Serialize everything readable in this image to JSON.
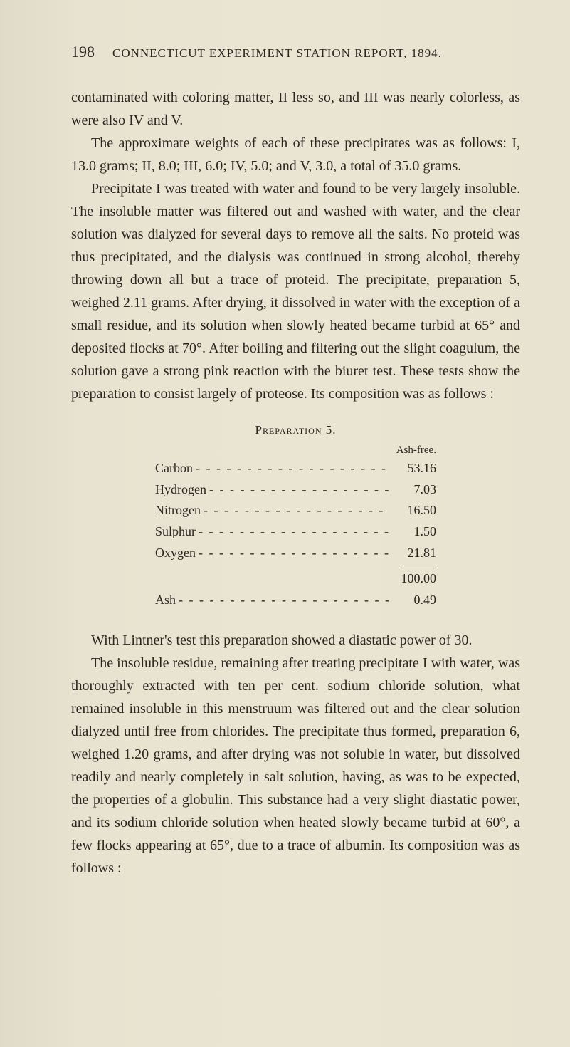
{
  "header": {
    "page_number": "198",
    "title": "CONNECTICUT EXPERIMENT STATION REPORT, 1894."
  },
  "paragraphs": {
    "p1": "contaminated with coloring matter, II less so, and III was nearly colorless, as were also IV and V.",
    "p2": "The approximate weights of each of these precipitates was as follows: I, 13.0 grams; II, 8.0; III, 6.0; IV, 5.0; and V, 3.0, a total of 35.0 grams.",
    "p3": "Precipitate I was treated with water and found to be very largely insoluble. The insoluble matter was filtered out and washed with water, and the clear solution was dialyzed for several days to remove all the salts. No proteid was thus precipitated, and the dialysis was continued in strong alcohol, thereby throwing down all but a trace of proteid. The precipitate, preparation 5, weighed 2.11 grams. After drying, it dissolved in water with the exception of a small residue, and its solution when slowly heated became turbid at 65° and deposited flocks at 70°. After boiling and filtering out the slight coagulum, the solution gave a strong pink reaction with the biuret test. These tests show the preparation to consist largely of proteose. Its composition was as follows :",
    "p4": "With Lintner's test this preparation showed a diastatic power of 30.",
    "p5": "The insoluble residue, remaining after treating precipitate I with water, was thoroughly extracted with ten per cent. sodium chloride solution, what remained insoluble in this menstruum was filtered out and the clear solution dialyzed until free from chlorides. The precipitate thus formed, preparation 6, weighed 1.20 grams, and after drying was not soluble in water, but dissolved readily and nearly completely in salt solution, having, as was to be expected, the properties of a globulin. This substance had a very slight diastatic power, and its sodium chloride solution when heated slowly became turbid at 60°, a few flocks appearing at 65°, due to a trace of albumin. Its composition was as follows :"
  },
  "preparation": {
    "title": "Preparation 5.",
    "column_header": "Ash-free.",
    "rows": [
      {
        "label": "Carbon",
        "value": "53.16"
      },
      {
        "label": "Hydrogen",
        "value": "7.03"
      },
      {
        "label": "Nitrogen",
        "value": "16.50"
      },
      {
        "label": "Sulphur",
        "value": "1.50"
      },
      {
        "label": "Oxygen",
        "value": "21.81"
      }
    ],
    "total": "100.00",
    "ash_label": "Ash",
    "ash_value": "0.49"
  },
  "styling": {
    "background_color": "#e8e3d0",
    "text_color": "#2a2620",
    "body_fontsize": 20,
    "header_fontsize": 17,
    "page_number_fontsize": 22,
    "table_fontsize": 18,
    "font_family": "Georgia, Times New Roman, serif"
  }
}
